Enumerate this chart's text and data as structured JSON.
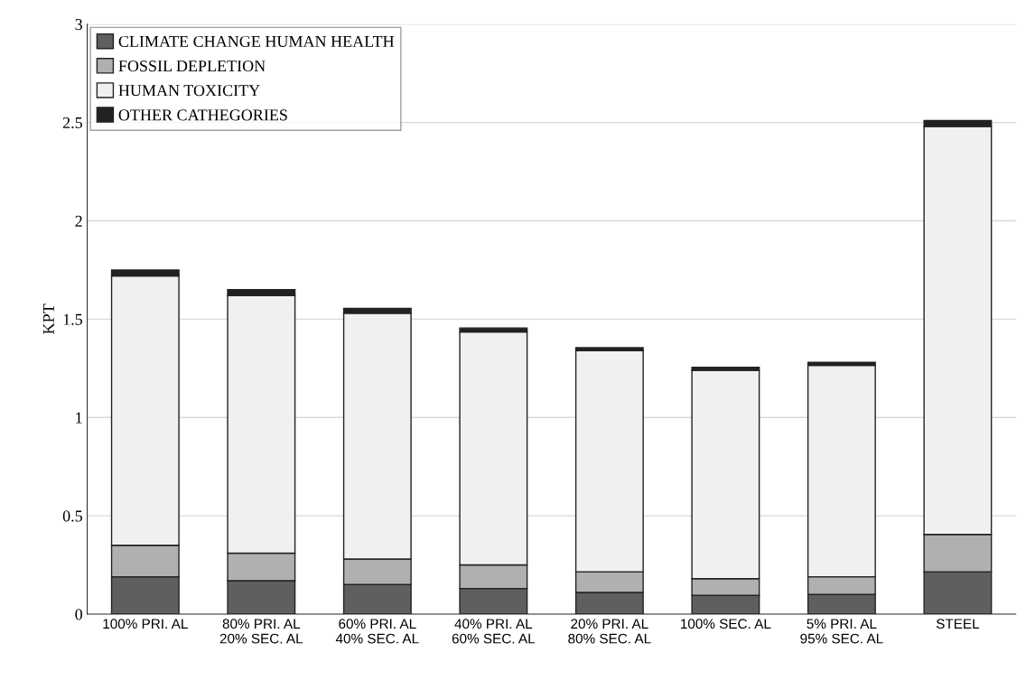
{
  "chart_data": {
    "type": "bar",
    "stacked": true,
    "ylabel": "KPT",
    "categories": [
      "100% PRI. AL",
      "80% PRI. AL\n20% SEC. AL",
      "60% PRI. AL\n40% SEC. AL",
      "40% PRI. AL\n60% SEC. AL",
      "20% PRI. AL\n80% SEC. AL",
      "100% SEC. AL",
      "5% PRI. AL\n95% SEC. AL",
      "STEEL"
    ],
    "series": [
      {
        "name": "CLIMATE CHANGE HUMAN HEALTH",
        "color": "#5f5f5f",
        "values": [
          0.19,
          0.17,
          0.15,
          0.13,
          0.11,
          0.095,
          0.1,
          0.215
        ]
      },
      {
        "name": "FOSSIL DEPLETION",
        "color": "#b0b0b0",
        "values": [
          0.16,
          0.14,
          0.13,
          0.12,
          0.105,
          0.085,
          0.09,
          0.19
        ]
      },
      {
        "name": "HUMAN TOXICITY",
        "color": "#f0f0f0",
        "values": [
          1.37,
          1.31,
          1.25,
          1.185,
          1.125,
          1.06,
          1.075,
          2.075
        ]
      },
      {
        "name": "OTHER CATHEGORIES",
        "color": "#222222",
        "values": [
          0.03,
          0.03,
          0.025,
          0.02,
          0.015,
          0.015,
          0.015,
          0.03
        ]
      }
    ],
    "ylim": [
      0,
      3
    ],
    "yticks": [
      0,
      0.5,
      1,
      1.5,
      2,
      2.5,
      3
    ],
    "grid": "y",
    "legend": "top left"
  }
}
